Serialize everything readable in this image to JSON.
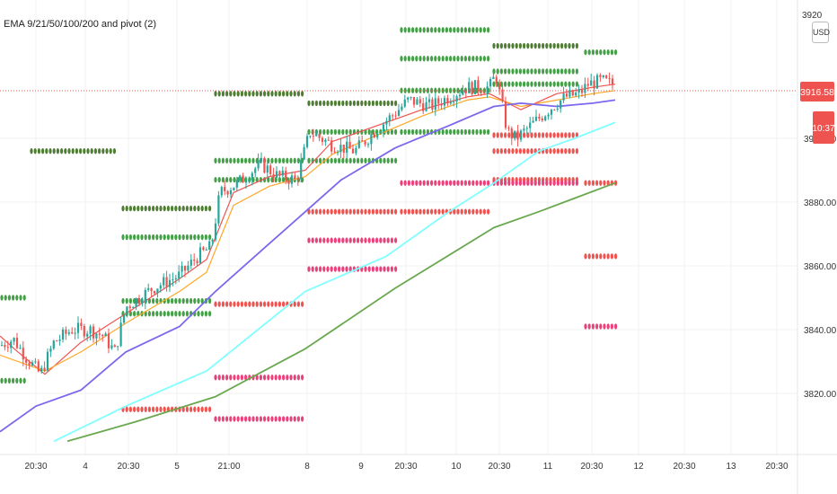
{
  "indicator_title": "EMA 9/21/50/100/200 and pivot (2)",
  "currency": "USD",
  "last_price_label": "3916.58",
  "countdown_label": "10:37",
  "colors": {
    "up": "#26a69a",
    "down": "#ef5350",
    "ema9": "#ef5350",
    "ema21": "#ffa726",
    "ema50": "#7b68ee",
    "ema100": "#7fffff",
    "ema200": "#6aa84f",
    "pivot_green": "#43a047",
    "pivot_dark": "#4e7d33",
    "pivot_red": "#ef5350",
    "pivot_pink": "#ec407a"
  },
  "chart_data": {
    "type": "candlestick",
    "title": "EMA 9/21/50/100/200 and pivot (2)",
    "y_axis": {
      "side": "right",
      "ticks": [
        3820,
        3840,
        3860,
        3880,
        3900
      ],
      "range": [
        3805,
        3935
      ],
      "top_partial_label": "3920"
    },
    "x_axis": {
      "ticks": [
        "20:30",
        "4",
        "20:30",
        "5",
        "21:00",
        "8",
        "9",
        "20:30",
        "10",
        "20:30",
        "11",
        "20:30",
        "12",
        "20:30",
        "13",
        "20:30"
      ]
    },
    "last_price": 3916.58,
    "ema_series": [
      {
        "name": "EMA 9",
        "values": [
          [
            0,
            3838
          ],
          [
            20,
            3833
          ],
          [
            50,
            3826
          ],
          [
            90,
            3836
          ],
          [
            140,
            3845
          ],
          [
            200,
            3856
          ],
          [
            230,
            3862
          ],
          [
            260,
            3883
          ],
          [
            300,
            3888
          ],
          [
            340,
            3890
          ],
          [
            370,
            3899
          ],
          [
            420,
            3904
          ],
          [
            470,
            3909
          ],
          [
            520,
            3913
          ],
          [
            545,
            3914
          ],
          [
            580,
            3909
          ],
          [
            620,
            3914
          ],
          [
            660,
            3916
          ],
          [
            685,
            3917
          ]
        ]
      },
      {
        "name": "EMA 21",
        "values": [
          [
            0,
            3832
          ],
          [
            50,
            3827
          ],
          [
            90,
            3833
          ],
          [
            140,
            3842
          ],
          [
            200,
            3852
          ],
          [
            230,
            3858
          ],
          [
            260,
            3879
          ],
          [
            300,
            3885
          ],
          [
            340,
            3888
          ],
          [
            370,
            3895
          ],
          [
            420,
            3901
          ],
          [
            470,
            3907
          ],
          [
            520,
            3912
          ],
          [
            545,
            3913
          ],
          [
            580,
            3910
          ],
          [
            620,
            3912
          ],
          [
            660,
            3914
          ],
          [
            685,
            3915
          ]
        ]
      },
      {
        "name": "EMA 50",
        "values": [
          [
            0,
            3808
          ],
          [
            40,
            3816
          ],
          [
            90,
            3821
          ],
          [
            140,
            3833
          ],
          [
            200,
            3841
          ],
          [
            240,
            3852
          ],
          [
            300,
            3867
          ],
          [
            340,
            3877
          ],
          [
            380,
            3887
          ],
          [
            440,
            3897
          ],
          [
            500,
            3904
          ],
          [
            550,
            3910
          ],
          [
            580,
            3911
          ],
          [
            620,
            3910
          ],
          [
            660,
            3911
          ],
          [
            685,
            3912
          ]
        ]
      },
      {
        "name": "EMA 100",
        "values": [
          [
            60,
            3805
          ],
          [
            140,
            3816
          ],
          [
            230,
            3827
          ],
          [
            340,
            3852
          ],
          [
            430,
            3863
          ],
          [
            500,
            3877
          ],
          [
            550,
            3886
          ],
          [
            600,
            3896
          ],
          [
            640,
            3900
          ],
          [
            685,
            3905
          ]
        ]
      },
      {
        "name": "EMA 200",
        "values": [
          [
            75,
            3805
          ],
          [
            150,
            3811
          ],
          [
            240,
            3819
          ],
          [
            340,
            3834
          ],
          [
            440,
            3853
          ],
          [
            550,
            3872
          ],
          [
            600,
            3877
          ],
          [
            685,
            3886
          ]
        ]
      }
    ],
    "candles": {
      "x_range": [
        0,
        685
      ],
      "path_points": [
        [
          0,
          3835
        ],
        [
          15,
          3837
        ],
        [
          30,
          3831
        ],
        [
          45,
          3826
        ],
        [
          60,
          3836
        ],
        [
          80,
          3840
        ],
        [
          100,
          3840
        ],
        [
          115,
          3838
        ],
        [
          128,
          3833
        ],
        [
          140,
          3847
        ],
        [
          170,
          3853
        ],
        [
          200,
          3857
        ],
        [
          220,
          3863
        ],
        [
          235,
          3866
        ],
        [
          245,
          3883
        ],
        [
          265,
          3886
        ],
        [
          290,
          3892
        ],
        [
          310,
          3888
        ],
        [
          330,
          3887
        ],
        [
          345,
          3902
        ],
        [
          370,
          3898
        ],
        [
          395,
          3896
        ],
        [
          420,
          3903
        ],
        [
          440,
          3908
        ],
        [
          455,
          3912
        ],
        [
          480,
          3910
        ],
        [
          500,
          3913
        ],
        [
          520,
          3916
        ],
        [
          545,
          3916
        ],
        [
          552,
          3920
        ],
        [
          565,
          3902
        ],
        [
          575,
          3900
        ],
        [
          595,
          3905
        ],
        [
          615,
          3910
        ],
        [
          630,
          3913
        ],
        [
          645,
          3914
        ],
        [
          655,
          3917
        ],
        [
          670,
          3918
        ],
        [
          685,
          3916.58
        ]
      ]
    },
    "pivot_levels": [
      {
        "color": "green",
        "x_range": [
          0,
          30
        ],
        "values": [
          3824,
          3850
        ]
      },
      {
        "color": "dark-green",
        "x_range": [
          33,
          133
        ],
        "values": [
          3896
        ]
      },
      {
        "color": "dark-green",
        "x_range": [
          135,
          236
        ],
        "values": [
          3878
        ]
      },
      {
        "color": "green",
        "x_range": [
          135,
          236
        ],
        "values": [
          3869,
          3849,
          3845
        ]
      },
      {
        "color": "red",
        "x_range": [
          135,
          236
        ],
        "values": [
          3815
        ]
      },
      {
        "color": "dark-green",
        "x_range": [
          238,
          340
        ],
        "values": [
          3914
        ]
      },
      {
        "color": "green",
        "x_range": [
          238,
          340
        ],
        "values": [
          3893,
          3887
        ]
      },
      {
        "color": "red",
        "x_range": [
          238,
          340
        ],
        "values": [
          3848
        ]
      },
      {
        "color": "pink",
        "x_range": [
          238,
          340
        ],
        "values": [
          3825,
          3812
        ]
      },
      {
        "color": "dark-green",
        "x_range": [
          342,
          443
        ],
        "values": [
          3911
        ]
      },
      {
        "color": "green",
        "x_range": [
          342,
          443
        ],
        "values": [
          3902,
          3893
        ]
      },
      {
        "color": "red",
        "x_range": [
          342,
          443
        ],
        "values": [
          3877
        ]
      },
      {
        "color": "pink",
        "x_range": [
          342,
          443
        ],
        "values": [
          3868,
          3859
        ]
      },
      {
        "color": "green",
        "x_range": [
          445,
          546
        ],
        "values": [
          3934,
          3925,
          3915,
          3902
        ]
      },
      {
        "color": "red",
        "x_range": [
          445,
          546
        ],
        "values": [
          3877
        ]
      },
      {
        "color": "pink",
        "x_range": [
          445,
          546
        ],
        "values": [
          3886
        ]
      },
      {
        "color": "dark-green",
        "x_range": [
          548,
          648
        ],
        "values": [
          3929
        ]
      },
      {
        "color": "green",
        "x_range": [
          548,
          648
        ],
        "values": [
          3921,
          3917
        ]
      },
      {
        "color": "red",
        "x_range": [
          548,
          648
        ],
        "values": [
          3901,
          3896,
          3887
        ]
      },
      {
        "color": "pink",
        "x_range": [
          548,
          648
        ],
        "values": [
          3886
        ]
      },
      {
        "color": "green",
        "x_range": [
          650,
          688
        ],
        "values": [
          3927
        ]
      },
      {
        "color": "red",
        "x_range": [
          650,
          688
        ],
        "values": [
          3886,
          3863
        ]
      },
      {
        "color": "pink",
        "x_range": [
          650,
          688
        ],
        "values": [
          3841
        ]
      }
    ]
  }
}
